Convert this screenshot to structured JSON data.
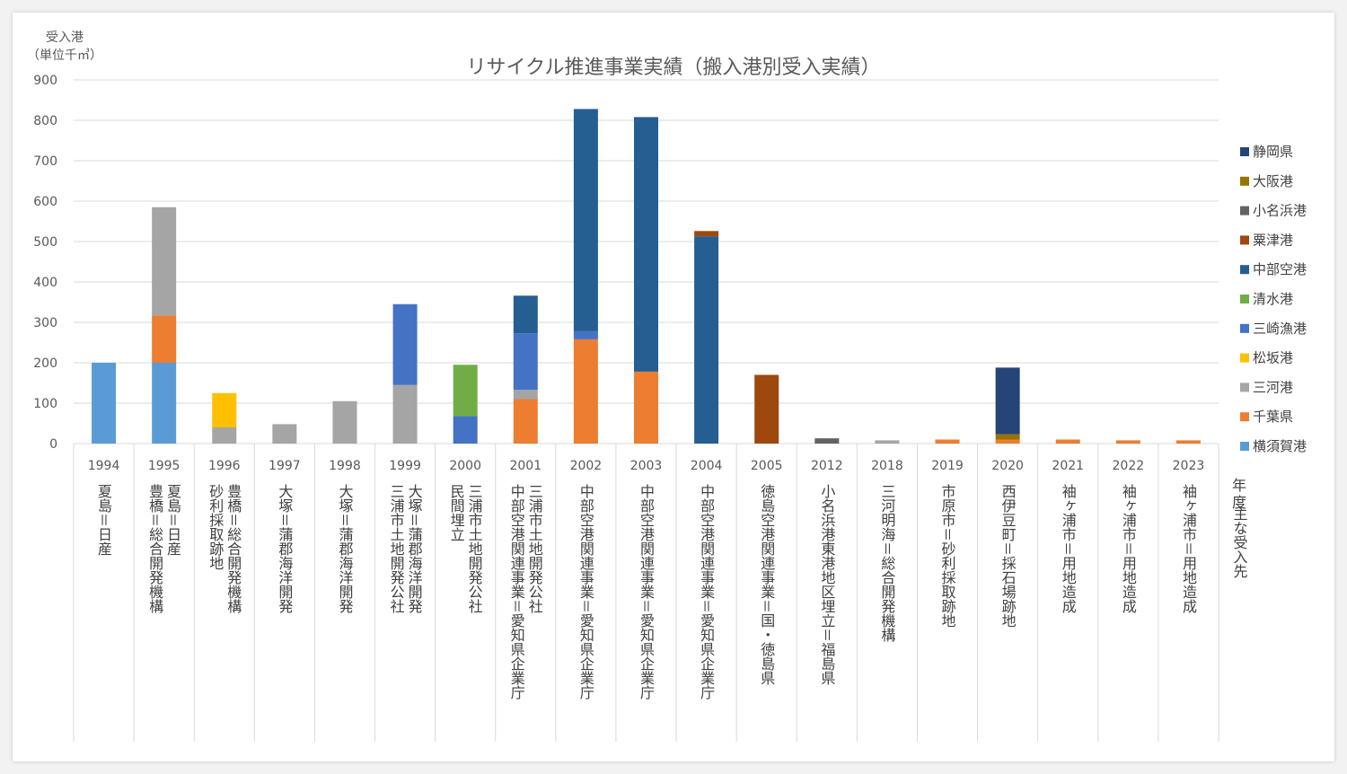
{
  "chart_data": {
    "type": "bar",
    "stacked": true,
    "title": "リサイクル推進事業実績（搬入港別受入実績）",
    "ylabel_line1": "受入港",
    "ylabel_line2": "（単位千㎥）",
    "ylim": [
      0,
      900
    ],
    "yticks": [
      0,
      100,
      200,
      300,
      400,
      500,
      600,
      700,
      800,
      900
    ],
    "grid": true,
    "legend_position": "right",
    "corner_label_line1": "年",
    "corner_label_line2": "度",
    "corner_label_line3": "主な受入先",
    "categories": [
      "1994",
      "1995",
      "1996",
      "1997",
      "1998",
      "1999",
      "2000",
      "2001",
      "2002",
      "2003",
      "2004",
      "2005",
      "2012",
      "2018",
      "2019",
      "2020",
      "2021",
      "2022",
      "2023"
    ],
    "destinations": [
      [
        "夏島＝日産"
      ],
      [
        "夏島＝日産",
        "豊橋＝総合開発機構"
      ],
      [
        "豊橋＝総合開発機構",
        "砂利採取跡地"
      ],
      [
        "大塚＝蒲郡海洋開発"
      ],
      [
        "大塚＝蒲郡海洋開発"
      ],
      [
        "大塚＝蒲郡海洋開発",
        "三浦市土地開発公社"
      ],
      [
        "三浦市土地開発公社",
        "民間埋立"
      ],
      [
        "三浦市土地開発公社",
        "中部空港関連事業＝愛知県企業庁"
      ],
      [
        "中部空港関連事業＝愛知県企業庁"
      ],
      [
        "中部空港関連事業＝愛知県企業庁"
      ],
      [
        "中部空港関連事業＝愛知県企業庁"
      ],
      [
        "徳島空港関連事業＝国・徳島県"
      ],
      [
        "小名浜港東港地区埋立＝福島県"
      ],
      [
        "三河明海＝総合開発機構"
      ],
      [
        "市原市＝砂利採取跡地"
      ],
      [
        "西伊豆町＝採石場跡地"
      ],
      [
        "袖ヶ浦市＝用地造成"
      ],
      [
        "袖ヶ浦市＝用地造成"
      ],
      [
        "袖ヶ浦市＝用地造成"
      ]
    ],
    "series": [
      {
        "name": "横須賀港",
        "color": "#5b9bd5",
        "values": [
          200,
          200,
          0,
          0,
          0,
          0,
          0,
          0,
          0,
          0,
          0,
          0,
          0,
          0,
          0,
          0,
          0,
          0,
          0
        ]
      },
      {
        "name": "千葉県",
        "color": "#ed7d31",
        "values": [
          0,
          117,
          0,
          0,
          0,
          0,
          0,
          110,
          258,
          178,
          0,
          0,
          0,
          0,
          10,
          10,
          10,
          8,
          8
        ]
      },
      {
        "name": "三河港",
        "color": "#a5a5a5",
        "values": [
          0,
          268,
          40,
          48,
          105,
          145,
          0,
          23,
          0,
          0,
          0,
          0,
          0,
          8,
          0,
          0,
          0,
          0,
          0
        ]
      },
      {
        "name": "松坂港",
        "color": "#ffc000",
        "values": [
          0,
          0,
          85,
          0,
          0,
          0,
          0,
          0,
          0,
          0,
          0,
          0,
          0,
          0,
          0,
          0,
          0,
          0,
          0
        ]
      },
      {
        "name": "三崎漁港",
        "color": "#4472c4",
        "values": [
          0,
          0,
          0,
          0,
          0,
          200,
          68,
          140,
          20,
          0,
          0,
          0,
          0,
          0,
          0,
          0,
          0,
          0,
          0
        ]
      },
      {
        "name": "清水港",
        "color": "#70ad47",
        "values": [
          0,
          0,
          0,
          0,
          0,
          0,
          127,
          0,
          0,
          0,
          0,
          0,
          0,
          0,
          0,
          0,
          0,
          0,
          0
        ]
      },
      {
        "name": "中部空港",
        "color": "#255e91",
        "values": [
          0,
          0,
          0,
          0,
          0,
          0,
          0,
          93,
          550,
          630,
          513,
          0,
          0,
          0,
          0,
          0,
          0,
          0,
          0
        ]
      },
      {
        "name": "粟津港",
        "color": "#9e480e",
        "values": [
          0,
          0,
          0,
          0,
          0,
          0,
          0,
          0,
          0,
          0,
          13,
          170,
          0,
          0,
          0,
          0,
          0,
          0,
          0
        ]
      },
      {
        "name": "小名浜港",
        "color": "#636363",
        "values": [
          0,
          0,
          0,
          0,
          0,
          0,
          0,
          0,
          0,
          0,
          0,
          0,
          13,
          0,
          0,
          0,
          0,
          0,
          0
        ]
      },
      {
        "name": "大阪港",
        "color": "#997300",
        "values": [
          0,
          0,
          0,
          0,
          0,
          0,
          0,
          0,
          0,
          0,
          0,
          0,
          0,
          0,
          0,
          13,
          0,
          0,
          0
        ]
      },
      {
        "name": "静岡県",
        "color": "#264478",
        "values": [
          0,
          0,
          0,
          0,
          0,
          0,
          0,
          0,
          0,
          0,
          0,
          0,
          0,
          0,
          0,
          165,
          0,
          0,
          0
        ]
      }
    ]
  }
}
